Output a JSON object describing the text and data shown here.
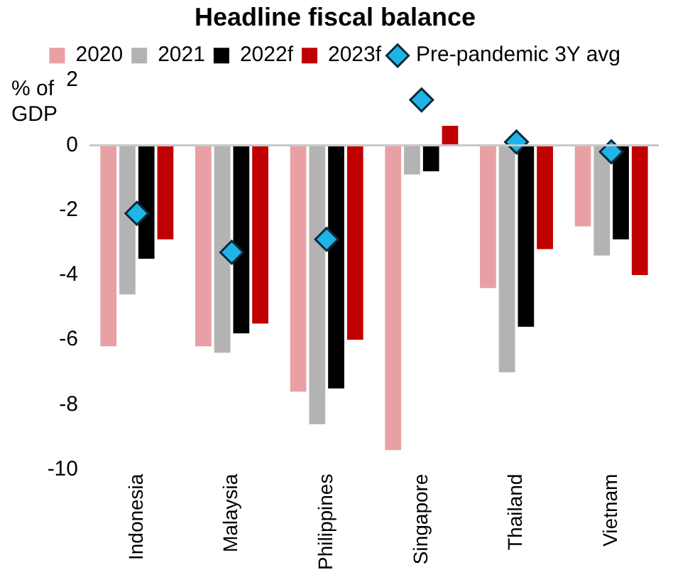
{
  "chart_data": {
    "type": "bar",
    "title": "Headline fiscal balance",
    "ylabel": "% of GDP",
    "categories": [
      "Indonesia",
      "Malaysia",
      "Philippines",
      "Singapore",
      "Thailand",
      "Vietnam"
    ],
    "series": [
      {
        "name": "2020",
        "color": "#e8a0a4",
        "values": [
          -6.2,
          -6.2,
          -7.6,
          -9.4,
          -4.4,
          -2.5
        ]
      },
      {
        "name": "2021",
        "color": "#b3b3b3",
        "values": [
          -4.6,
          -6.4,
          -8.6,
          -0.9,
          -7.0,
          -3.4
        ]
      },
      {
        "name": "2022f",
        "color": "#000000",
        "values": [
          -3.5,
          -5.8,
          -7.5,
          -0.8,
          -5.6,
          -2.9
        ]
      },
      {
        "name": "2023f",
        "color": "#c00000",
        "values": [
          -2.9,
          -5.5,
          -6.0,
          0.6,
          -3.2,
          -4.0
        ]
      },
      {
        "name": "Pre-pandemic 3Y avg",
        "type": "scatter",
        "marker": "diamond",
        "color": "#1fb4e8",
        "x": [
          "Indonesia",
          "Malaysia",
          "Philippines",
          "Singapore",
          "Thailand",
          "Vietnam"
        ],
        "values": [
          -2.1,
          -3.3,
          -2.9,
          1.4,
          0.1,
          -0.2
        ]
      }
    ],
    "ref_lines": [
      {
        "axis": "y",
        "value": 0,
        "color": "#c8c8c8"
      }
    ],
    "ylim": [
      -10,
      2
    ],
    "yticks": [
      -10,
      -8,
      -6,
      -4,
      -2,
      0,
      2
    ],
    "grid": false,
    "legend": "top"
  }
}
